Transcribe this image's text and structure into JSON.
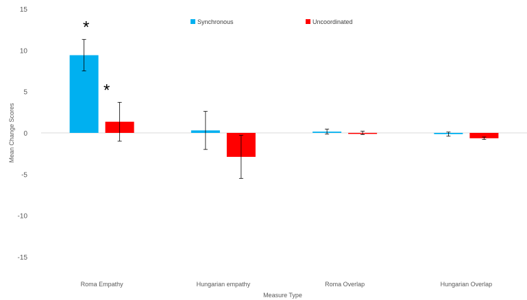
{
  "chart_data": {
    "type": "bar",
    "title": "",
    "xlabel": "Measure Type",
    "ylabel": "Mean Change Scores",
    "ylim": [
      -15,
      15
    ],
    "yticks": [
      15,
      10,
      5,
      0,
      -5,
      -10,
      -15
    ],
    "ytick_labels": [
      "15",
      "10",
      "5",
      "0",
      "-5",
      "-10",
      "-15"
    ],
    "grid": false,
    "legend_position": "top",
    "categories": [
      "Roma Empathy",
      "Hungarian empathy",
      "Roma Overlap",
      "Hungarian Overlap"
    ],
    "series": [
      {
        "name": "Synchronous",
        "color": "#00B0F0",
        "values": [
          9.4,
          0.3,
          0.15,
          -0.15
        ],
        "error": [
          1.9,
          2.3,
          0.3,
          0.25
        ]
      },
      {
        "name": "Uncoordinated",
        "color": "#FF0000",
        "values": [
          1.35,
          -2.9,
          0.0,
          -0.65
        ],
        "error": [
          2.35,
          2.6,
          0.2,
          0.15
        ]
      }
    ],
    "annotations": [
      {
        "text": "*",
        "category": 0,
        "series": 0
      },
      {
        "text": "*",
        "category": 0,
        "series": 1
      }
    ]
  }
}
